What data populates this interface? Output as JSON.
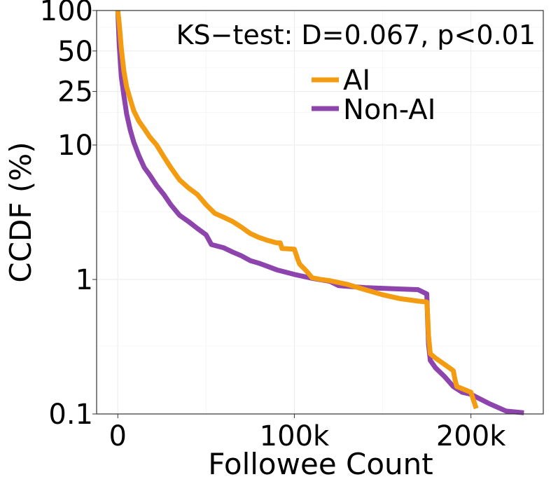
{
  "chart_data": {
    "type": "line",
    "xlabel": "Followee Count",
    "ylabel": "CCDF (%)",
    "annotation": "KS−test: D=0.067, p<0.01",
    "x_scale": "linear",
    "y_scale": "log",
    "xlim": [
      -12000,
      241000
    ],
    "ylim": [
      0.1,
      100
    ],
    "x_ticks": [
      {
        "value": 0,
        "label": "0"
      },
      {
        "value": 100000,
        "label": "100k"
      },
      {
        "value": 200000,
        "label": "200k"
      }
    ],
    "x_minor_ticks": [
      50000,
      150000
    ],
    "y_ticks": [
      {
        "value": 100,
        "label": "100"
      },
      {
        "value": 50,
        "label": "50"
      },
      {
        "value": 25,
        "label": "25"
      },
      {
        "value": 10,
        "label": "10"
      },
      {
        "value": 1,
        "label": "1"
      },
      {
        "value": 0.1,
        "label": "0.1"
      }
    ],
    "y_minor_ticks": [
      75,
      37.5,
      17.5,
      3.2,
      0.32
    ],
    "grid": true,
    "legend_position": "top-right",
    "series": [
      {
        "name": "AI",
        "color": "#f39c12",
        "x": [
          0,
          800,
          2000,
          3500,
          5000,
          7000,
          9000,
          12000,
          15000,
          18000,
          22000,
          26000,
          30000,
          35000,
          40000,
          45000,
          50000,
          55000,
          60000,
          65000,
          70000,
          75000,
          80000,
          85000,
          90000,
          92000,
          93000,
          100000,
          102000,
          103000,
          107000,
          110000,
          115000,
          120000,
          130000,
          140000,
          150000,
          160000,
          170000,
          175000,
          175500,
          176000,
          177000,
          180000,
          190000,
          191000,
          192000,
          200000,
          203000
        ],
        "y": [
          100,
          80,
          52,
          35,
          27,
          22,
          18,
          15,
          13.2,
          11.5,
          10,
          8.2,
          6.8,
          5.5,
          4.8,
          4.3,
          3.6,
          3.1,
          2.9,
          2.7,
          2.45,
          2.2,
          2.05,
          1.95,
          1.87,
          1.87,
          1.7,
          1.68,
          1.4,
          1.3,
          1.15,
          1.03,
          1.0,
          0.98,
          0.92,
          0.84,
          0.77,
          0.72,
          0.69,
          0.68,
          0.55,
          0.38,
          0.28,
          0.26,
          0.21,
          0.18,
          0.16,
          0.145,
          0.11
        ]
      },
      {
        "name": "Non-AI",
        "color": "#8e44ad",
        "x": [
          0,
          800,
          2000,
          3500,
          5000,
          7000,
          9000,
          12000,
          15000,
          18000,
          22000,
          26000,
          30000,
          35000,
          40000,
          45000,
          50000,
          53000,
          60000,
          65000,
          70000,
          75000,
          80000,
          85000,
          90000,
          100000,
          110000,
          120000,
          125000,
          130000,
          140000,
          150000,
          160000,
          170000,
          175000,
          175500,
          176000,
          177000,
          180000,
          185000,
          190000,
          195000,
          200000,
          210000,
          220000,
          230000
        ],
        "y": [
          100,
          55,
          32,
          23,
          17,
          13,
          10.5,
          8.3,
          6.8,
          6.0,
          5.0,
          4.3,
          3.6,
          3.0,
          2.7,
          2.4,
          2.15,
          1.82,
          1.72,
          1.6,
          1.5,
          1.38,
          1.32,
          1.25,
          1.18,
          1.09,
          1.02,
          0.97,
          0.9,
          0.89,
          0.87,
          0.86,
          0.85,
          0.84,
          0.78,
          0.5,
          0.33,
          0.25,
          0.22,
          0.19,
          0.16,
          0.145,
          0.14,
          0.12,
          0.105,
          0.102
        ]
      }
    ]
  }
}
